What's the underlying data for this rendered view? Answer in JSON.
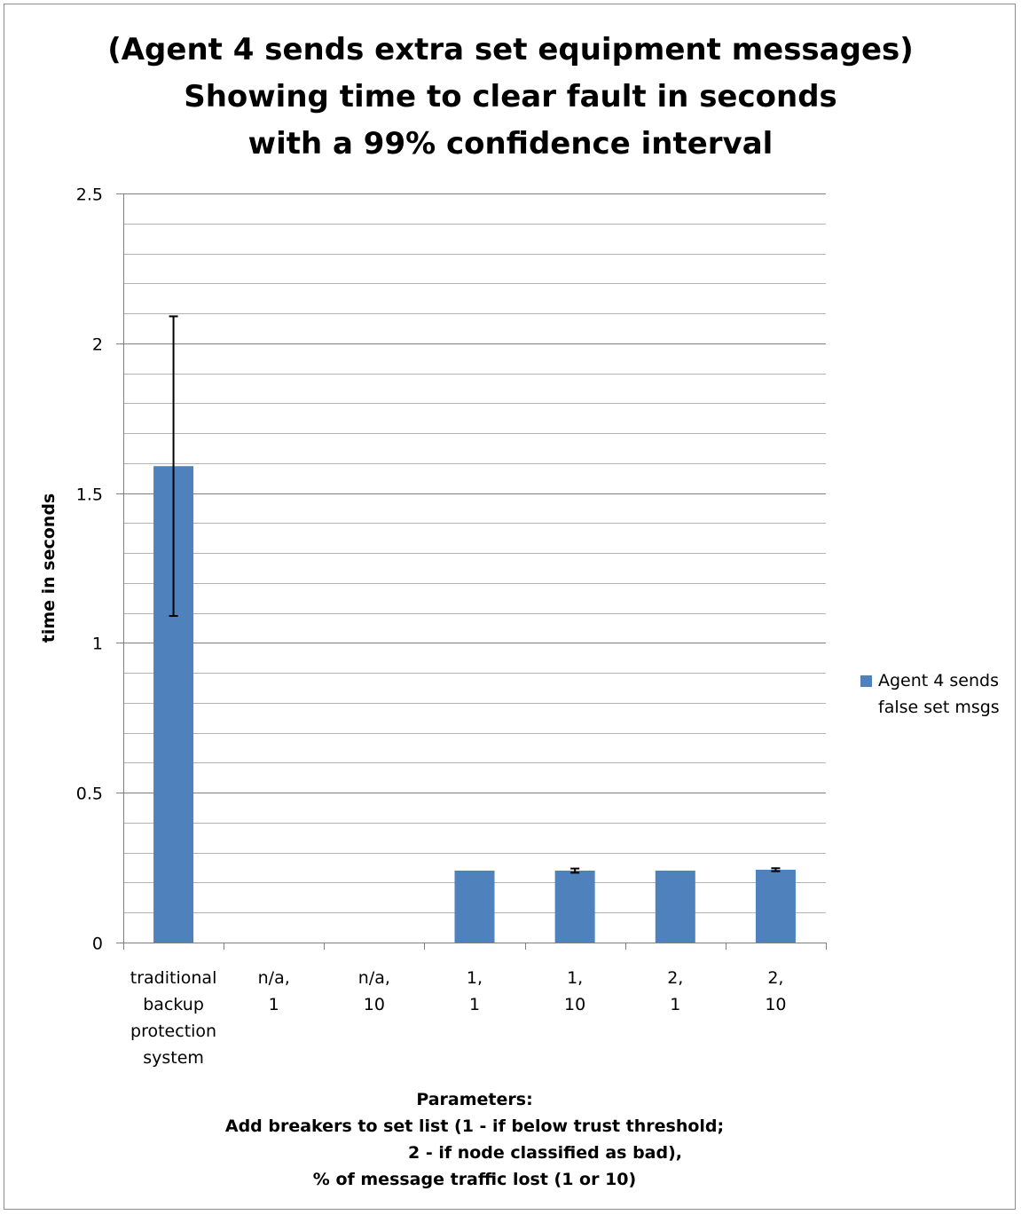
{
  "chart_data": {
    "type": "bar",
    "title_lines": [
      "(Agent 4 sends extra set equipment messages)",
      "Showing time to clear fault in seconds",
      "with a 99% confidence interval"
    ],
    "ylabel": "time in seconds",
    "xlabel_lines": [
      "Parameters:",
      "Add breakers to set list (1 - if below trust threshold;",
      "2 - if node classified as bad),",
      "% of message traffic lost (1 or 10)"
    ],
    "ylim": [
      0,
      2.5
    ],
    "y_major_ticks": [
      0,
      0.5,
      1,
      1.5,
      2,
      2.5
    ],
    "y_tick_labels": [
      "0",
      "0.5",
      "1",
      "1.5",
      "2",
      "2.5"
    ],
    "y_minor_step": 0.1,
    "categories": [
      [
        "traditional",
        "backup",
        "protection",
        "system"
      ],
      [
        "n/a,",
        "1"
      ],
      [
        "n/a,",
        "10"
      ],
      [
        "1,",
        "1"
      ],
      [
        "1,",
        "10"
      ],
      [
        "2,",
        "1"
      ],
      [
        "2,",
        "10"
      ]
    ],
    "series": [
      {
        "name": "Agent 4 sends false set msgs",
        "color": "#4f81bd",
        "values": [
          1.59,
          0,
          0,
          0.24,
          0.24,
          0.24,
          0.243
        ],
        "error_low": [
          1.09,
          null,
          null,
          null,
          0.233,
          null,
          0.238
        ],
        "error_high": [
          2.09,
          null,
          null,
          null,
          0.247,
          null,
          0.248
        ]
      }
    ],
    "legend": {
      "position": "right",
      "label_lines": [
        "Agent 4 sends",
        "false set msgs"
      ]
    },
    "grid": true
  }
}
